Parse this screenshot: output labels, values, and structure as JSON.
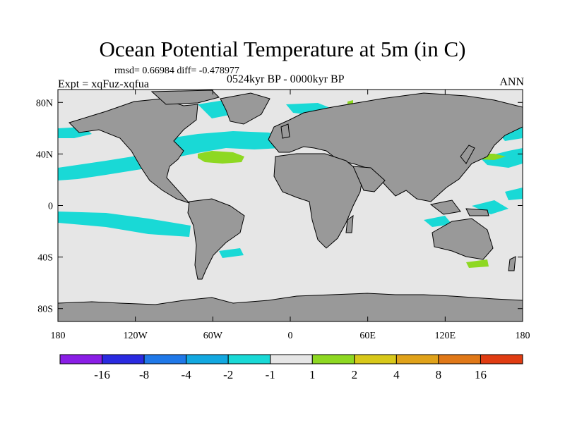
{
  "title": "Ocean Potential Temperature at 5m (in C)",
  "stats": {
    "text": "rmsd= 0.66984 diff= -0.478977"
  },
  "experiment": {
    "text": "Expt = xqFuz-xqfua"
  },
  "period": {
    "text": "0524kyr BP - 0000kyr BP"
  },
  "season": {
    "text": "ANN"
  },
  "colors": {
    "land": "#999999",
    "ocean_neutral": "#e6e6e6",
    "cool_anomaly": "#19d9d6",
    "warm_anomaly": "#8ed822",
    "coastline": "#000000"
  },
  "map": {
    "lon_range": [
      -180,
      180
    ],
    "lat_range": [
      -90,
      90
    ],
    "lon_ticks": [
      {
        "value": -180,
        "label": "180"
      },
      {
        "value": -120,
        "label": "120W"
      },
      {
        "value": -60,
        "label": "60W"
      },
      {
        "value": 0,
        "label": "0"
      },
      {
        "value": 60,
        "label": "60E"
      },
      {
        "value": 120,
        "label": "120E"
      },
      {
        "value": 180,
        "label": "180"
      }
    ],
    "lat_ticks": [
      {
        "value": 80,
        "label": "80N"
      },
      {
        "value": 40,
        "label": "40N"
      },
      {
        "value": 0,
        "label": "0"
      },
      {
        "value": -40,
        "label": "40S"
      },
      {
        "value": -80,
        "label": "80S"
      }
    ]
  },
  "colorbar": {
    "colors": [
      "#8a1ee6",
      "#2a2ae0",
      "#1f78e8",
      "#12a8e0",
      "#19d9d6",
      "#e6e6e6",
      "#8ed822",
      "#d8c81a",
      "#e0a21a",
      "#e07818",
      "#e03c12"
    ],
    "labels": [
      "-16",
      "-8",
      "-4",
      "-2",
      "-1",
      "1",
      "2",
      "4",
      "8",
      "16"
    ]
  }
}
